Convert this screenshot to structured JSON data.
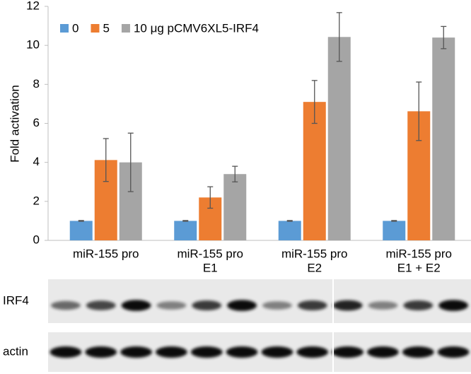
{
  "chart_data": {
    "type": "bar",
    "ylabel": "Fold activation",
    "categories": [
      [
        "miR-155 pro"
      ],
      [
        "miR-155 pro",
        "E1"
      ],
      [
        "miR-155 pro",
        "E2"
      ],
      [
        "miR-155 pro",
        "E1 + E2"
      ]
    ],
    "series": [
      {
        "name": "0",
        "color": "#5b9bd5",
        "values": [
          1,
          1,
          1,
          1
        ],
        "errors": [
          0.02,
          0.02,
          0.02,
          0.02
        ]
      },
      {
        "name": "5",
        "color": "#ed7d31",
        "values": [
          4.12,
          2.2,
          7.1,
          6.62
        ],
        "errors": [
          1.1,
          0.55,
          1.1,
          1.5
        ]
      },
      {
        "name": "10 μg pCMV6XL5-IRF4",
        "color": "#a5a5a5",
        "values": [
          4.0,
          3.4,
          10.43,
          10.4
        ],
        "errors": [
          1.5,
          0.4,
          1.25,
          0.57
        ]
      }
    ],
    "ylim": [
      0,
      12
    ],
    "yticks": [
      0,
      2,
      4,
      6,
      8,
      10,
      12
    ],
    "grid": false,
    "legend": "top-left"
  },
  "blot": {
    "rows": [
      "IRF4",
      "actin"
    ]
  }
}
